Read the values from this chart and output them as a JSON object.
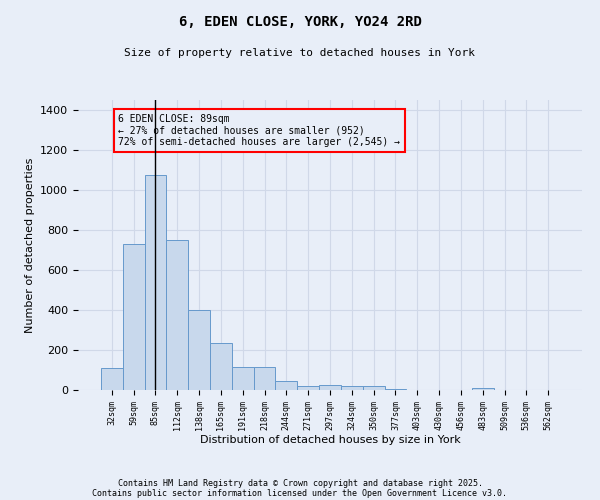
{
  "title1": "6, EDEN CLOSE, YORK, YO24 2RD",
  "title2": "Size of property relative to detached houses in York",
  "xlabel": "Distribution of detached houses by size in York",
  "ylabel": "Number of detached properties",
  "bar_color": "#c8d8ec",
  "bar_edge_color": "#6699cc",
  "categories": [
    "32sqm",
    "59sqm",
    "85sqm",
    "112sqm",
    "138sqm",
    "165sqm",
    "191sqm",
    "218sqm",
    "244sqm",
    "271sqm",
    "297sqm",
    "324sqm",
    "350sqm",
    "377sqm",
    "403sqm",
    "430sqm",
    "456sqm",
    "483sqm",
    "509sqm",
    "536sqm",
    "562sqm"
  ],
  "values": [
    108,
    728,
    1075,
    752,
    400,
    233,
    113,
    113,
    45,
    18,
    25,
    22,
    18,
    5,
    0,
    0,
    0,
    10,
    0,
    0,
    0
  ],
  "ylim": [
    0,
    1450
  ],
  "vline_x_index": 2,
  "annotation_text": "6 EDEN CLOSE: 89sqm\n← 27% of detached houses are smaller (952)\n72% of semi-detached houses are larger (2,545) →",
  "bg_color": "#e8eef8",
  "grid_color": "#d0d8e8",
  "footer1": "Contains HM Land Registry data © Crown copyright and database right 2025.",
  "footer2": "Contains public sector information licensed under the Open Government Licence v3.0."
}
